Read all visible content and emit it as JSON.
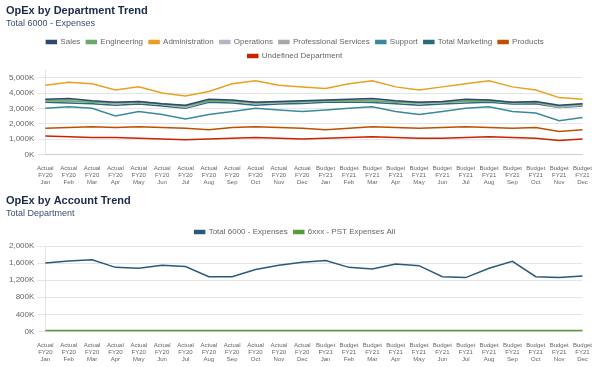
{
  "chart_data": [
    {
      "type": "line",
      "title": "OpEx by Department Trend",
      "subtitle": "Total 6000 - Expenses",
      "categories": [
        "Actual\nFY20\nJan",
        "Actual\nFY20\nFeb",
        "Actual\nFY20\nMar",
        "Actual\nFY20\nApr",
        "Actual\nFY20\nMay",
        "Actual\nFY20\nJun",
        "Actual\nFY20\nJul",
        "Actual\nFY20\nAug",
        "Actual\nFY20\nSep",
        "Actual\nFY20\nOct",
        "Actual\nFY20\nNov",
        "Actual\nFY20\nDec",
        "Budget\nFY21\nJan",
        "Budget\nFY21\nFeb",
        "Budget\nFY21\nMar",
        "Budget\nFY21\nApr",
        "Budget\nFY21\nMay",
        "Budget\nFY21\nJun",
        "Budget\nFY21\nJul",
        "Budget\nFY21\nAug",
        "Budget\nFY21\nSep",
        "Budget\nFY21\nOct",
        "Budget\nFY21\nNov",
        "Budget\nFY21\nDec"
      ],
      "series": [
        {
          "name": "Sales",
          "color": "#2d4a6b",
          "values": [
            3600,
            3650,
            3500,
            3400,
            3450,
            3300,
            3200,
            3600,
            3550,
            3400,
            3450,
            3500,
            3550,
            3600,
            3650,
            3500,
            3400,
            3450,
            3600,
            3550,
            3400,
            3450,
            3200,
            3300
          ]
        },
        {
          "name": "Engineering",
          "color": "#6aaa6a",
          "values": [
            3500,
            3480,
            3400,
            3380,
            3420,
            3300,
            3150,
            3500,
            3480,
            3380,
            3420,
            3450,
            3500,
            3520,
            3480,
            3400,
            3380,
            3420,
            3480,
            3500,
            3380,
            3420,
            3150,
            3280
          ]
        },
        {
          "name": "Administration",
          "color": "#e8a020",
          "values": [
            4500,
            4700,
            4600,
            4200,
            4400,
            4000,
            3800,
            4100,
            4600,
            4800,
            4500,
            4400,
            4300,
            4600,
            4800,
            4400,
            4200,
            4400,
            4600,
            4800,
            4400,
            4200,
            3700,
            3600
          ]
        },
        {
          "name": "Operations",
          "color": "#b0b8c8",
          "values": [
            3550,
            3600,
            3480,
            3350,
            3450,
            3280,
            3100,
            3550,
            3500,
            3380,
            3420,
            3460,
            3500,
            3560,
            3600,
            3480,
            3360,
            3430,
            3500,
            3550,
            3380,
            3430,
            3100,
            3250
          ]
        },
        {
          "name": "Professional Services",
          "color": "#a8a8a8",
          "values": [
            3480,
            3500,
            3420,
            3300,
            3380,
            3250,
            3050,
            3480,
            3450,
            3320,
            3380,
            3420,
            3480,
            3500,
            3520,
            3420,
            3320,
            3380,
            3450,
            3480,
            3350,
            3380,
            3050,
            3200
          ]
        },
        {
          "name": "Support",
          "color": "#3a8a9a",
          "values": [
            3000,
            3100,
            3000,
            2500,
            2800,
            2600,
            2300,
            2600,
            2800,
            3000,
            2900,
            2800,
            2900,
            3000,
            3100,
            2800,
            2600,
            2800,
            3000,
            3100,
            2800,
            2700,
            2200,
            2400
          ]
        },
        {
          "name": "Total Marketing",
          "color": "#2a6a7a",
          "values": [
            3400,
            3350,
            3300,
            3200,
            3280,
            3150,
            3000,
            3400,
            3350,
            3200,
            3280,
            3320,
            3400,
            3420,
            3380,
            3300,
            3200,
            3280,
            3350,
            3400,
            3280,
            3300,
            3050,
            3150
          ]
        },
        {
          "name": "Products",
          "color": "#c05000",
          "values": [
            1700,
            1750,
            1800,
            1750,
            1800,
            1750,
            1700,
            1600,
            1750,
            1800,
            1750,
            1700,
            1600,
            1700,
            1800,
            1750,
            1700,
            1750,
            1800,
            1750,
            1700,
            1750,
            1500,
            1600
          ]
        },
        {
          "name": "Undefined Department",
          "color": "#cc2200",
          "values": [
            1200,
            1150,
            1100,
            1100,
            1050,
            1000,
            950,
            1000,
            1050,
            1100,
            1050,
            1000,
            1050,
            1100,
            1150,
            1100,
            1050,
            1050,
            1100,
            1150,
            1100,
            1050,
            900,
            1000
          ]
        }
      ],
      "ylim": [
        0,
        5500
      ],
      "yticks": [
        {
          "value": 0,
          "label": "0K"
        },
        {
          "value": 1000,
          "label": "1,000K"
        },
        {
          "value": 2000,
          "label": "2,000K"
        },
        {
          "value": 3000,
          "label": "3,000K"
        },
        {
          "value": 4000,
          "label": "4,000K"
        },
        {
          "value": 5000,
          "label": "5,000K"
        }
      ],
      "grid": "y",
      "legend": "top"
    },
    {
      "type": "line",
      "title": "OpEx by Account Trend",
      "subtitle": "Total Department",
      "categories": [
        "Actual\nFY20\nJan",
        "Actual\nFY20\nFeb",
        "Actual\nFY20\nMar",
        "Actual\nFY20\nApr",
        "Actual\nFY20\nMay",
        "Actual\nFY20\nJun",
        "Actual\nFY20\nJul",
        "Actual\nFY20\nAug",
        "Actual\nFY20\nSep",
        "Actual\nFY20\nOct",
        "Actual\nFY20\nNov",
        "Actual\nFY20\nDec",
        "Budget\nFY21\nJan",
        "Budget\nFY21\nFeb",
        "Budget\nFY21\nMar",
        "Budget\nFY21\nApr",
        "Budget\nFY21\nMay",
        "Budget\nFY21\nJun",
        "Budget\nFY21\nJul",
        "Budget\nFY21\nAug",
        "Budget\nFY21\nSep",
        "Budget\nFY21\nOct",
        "Budget\nFY21\nNov",
        "Budget\nFY21\nDec"
      ],
      "series": [
        {
          "name": "Total 6000 - Expenses",
          "color": "#2a5a7a",
          "values": [
            1600,
            1650,
            1680,
            1500,
            1480,
            1550,
            1520,
            1280,
            1280,
            1450,
            1550,
            1620,
            1660,
            1500,
            1460,
            1580,
            1540,
            1280,
            1260,
            1480,
            1640,
            1280,
            1260,
            1300
          ]
        },
        {
          "name": "6xxx - PST Expenses All",
          "color": "#5a9a3a",
          "values": [
            20,
            20,
            20,
            20,
            20,
            20,
            20,
            20,
            20,
            20,
            20,
            20,
            20,
            20,
            20,
            20,
            20,
            20,
            20,
            20,
            20,
            20,
            20,
            20
          ]
        }
      ],
      "ylim": [
        0,
        2000
      ],
      "yticks": [
        {
          "value": 0,
          "label": "0K"
        },
        {
          "value": 400,
          "label": "400K"
        },
        {
          "value": 800,
          "label": "800K"
        },
        {
          "value": 1200,
          "label": "1,200K"
        },
        {
          "value": 1600,
          "label": "1,600K"
        },
        {
          "value": 2000,
          "label": "2,000K"
        }
      ],
      "grid": "y",
      "legend": "top"
    }
  ]
}
